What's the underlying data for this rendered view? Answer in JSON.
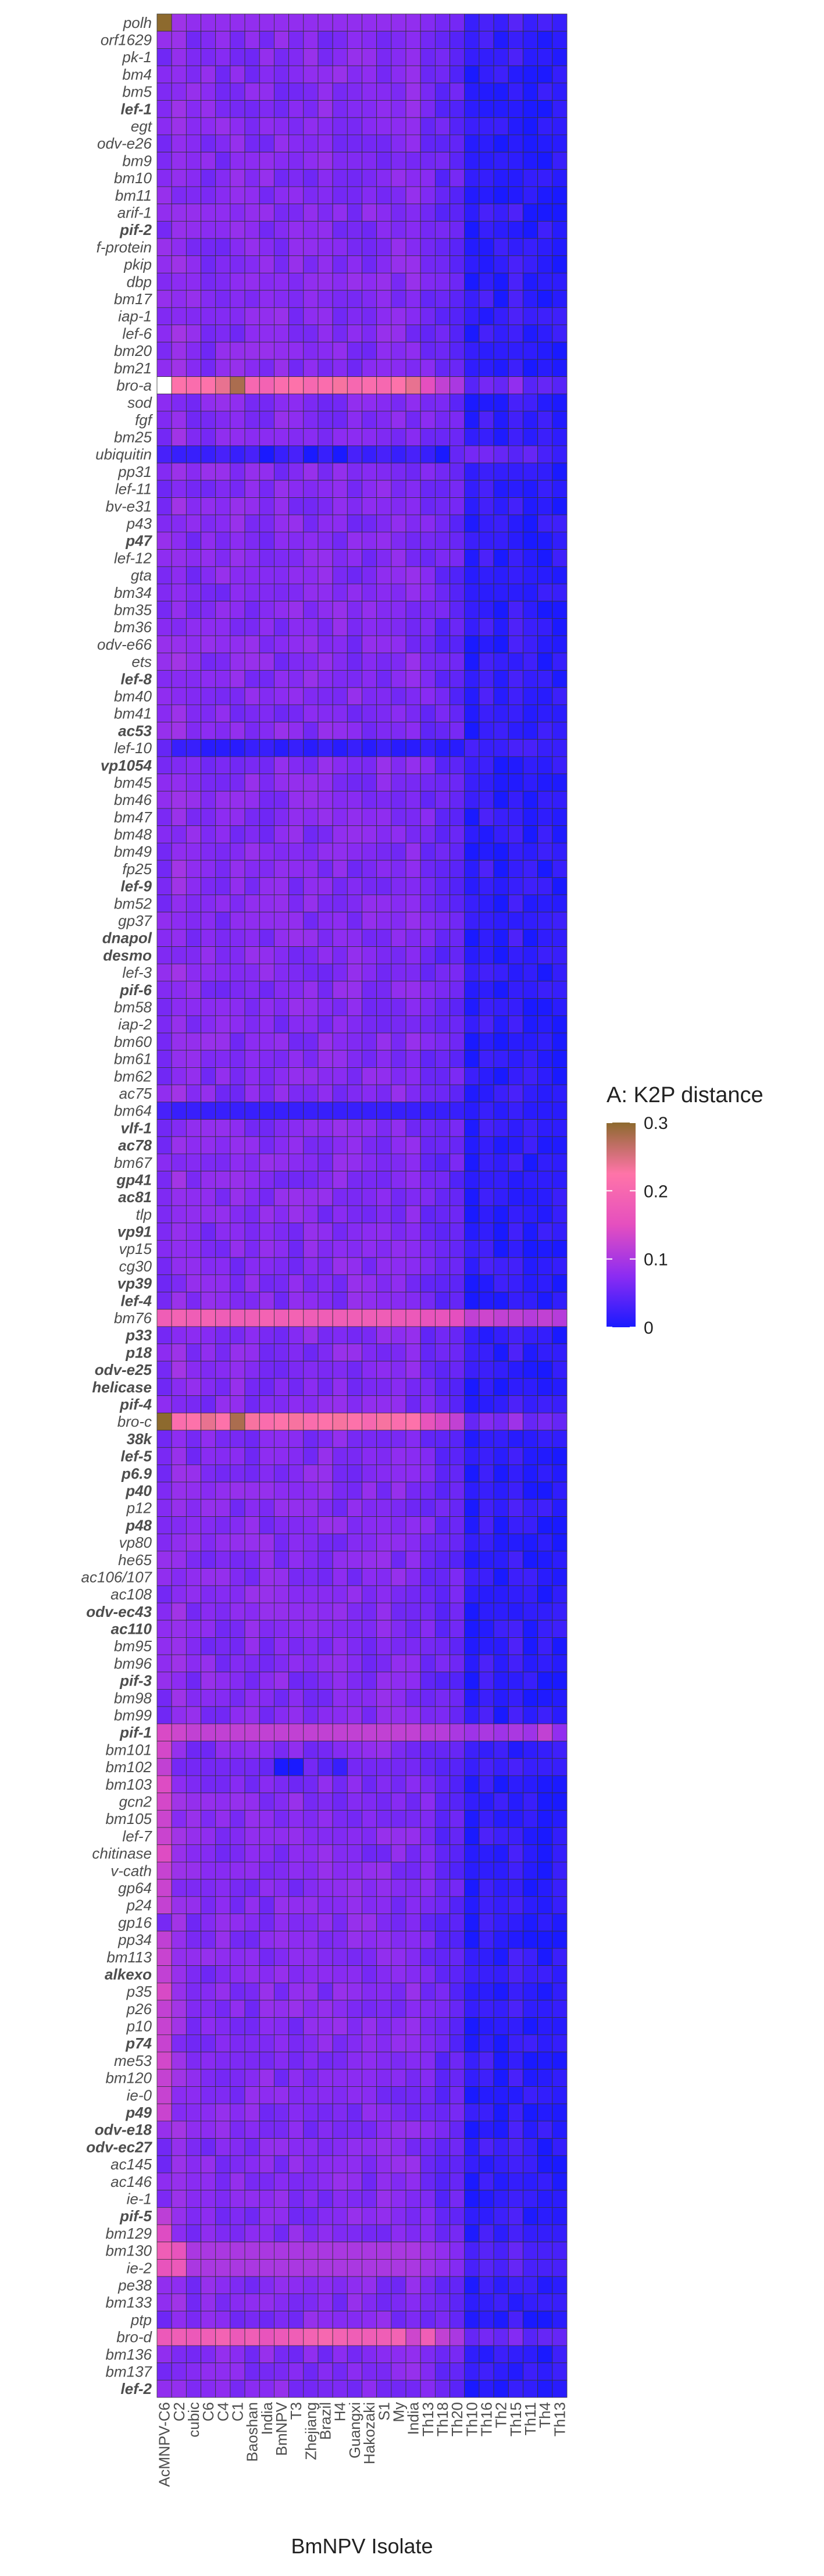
{
  "chart_data": {
    "type": "heatmap",
    "xlabel": "BmNPV Isolate",
    "ylabel": "",
    "x": [
      "AcMNPV-C6",
      "C2",
      "cubic",
      "C6",
      "C4",
      "C1",
      "Baoshan",
      "India",
      "BmNPV",
      "T3",
      "Zhejiang",
      "Brazil",
      "H4",
      "Guangxi",
      "Hakozaki",
      "S1",
      "My",
      "India",
      "Th13",
      "Th18",
      "Th20",
      "Th10",
      "Th16",
      "Th2",
      "Th15",
      "Th11",
      "Th4",
      "Th13"
    ],
    "y": [
      "polh",
      "orf1629",
      "pk-1",
      "bm4",
      "bm5",
      "lef-1",
      "egt",
      "odv-e26",
      "bm9",
      "bm10",
      "bm11",
      "arif-1",
      "pif-2",
      "f-protein",
      "pkip",
      "dbp",
      "bm17",
      "iap-1",
      "lef-6",
      "bm20",
      "bm21",
      "bro-a",
      "sod",
      "fgf",
      "bm25",
      "ubiquitin",
      "pp31",
      "lef-11",
      "bv-e31",
      "p43",
      "p47",
      "lef-12",
      "gta",
      "bm34",
      "bm35",
      "bm36",
      "odv-e66",
      "ets",
      "lef-8",
      "bm40",
      "bm41",
      "ac53",
      "lef-10",
      "vp1054",
      "bm45",
      "bm46",
      "bm47",
      "bm48",
      "bm49",
      "fp25",
      "lef-9",
      "bm52",
      "gp37",
      "dnapol",
      "desmo",
      "lef-3",
      "pif-6",
      "bm58",
      "iap-2",
      "bm60",
      "bm61",
      "bm62",
      "ac75",
      "bm64",
      "vlf-1",
      "ac78",
      "bm67",
      "gp41",
      "ac81",
      "tlp",
      "vp91",
      "vp15",
      "cg30",
      "vp39",
      "lef-4",
      "bm76",
      "p33",
      "p18",
      "odv-e25",
      "helicase",
      "pif-4",
      "bro-c",
      "38k",
      "lef-5",
      "p6.9",
      "p40",
      "p12",
      "p48",
      "vp80",
      "he65",
      "ac106/107",
      "ac108",
      "odv-ec43",
      "ac110",
      "bm95",
      "bm96",
      "pif-3",
      "bm98",
      "bm99",
      "pif-1",
      "bm101",
      "bm102",
      "bm103",
      "gcn2",
      "bm105",
      "lef-7",
      "chitinase",
      "v-cath",
      "gp64",
      "p24",
      "gp16",
      "pp34",
      "bm113",
      "alkexo",
      "p35",
      "p26",
      "p10",
      "p74",
      "me53",
      "bm120",
      "ie-0",
      "p49",
      "odv-e18",
      "odv-ec27",
      "ac145",
      "ac146",
      "ie-1",
      "pif-5",
      "bm129",
      "bm130",
      "ie-2",
      "pe38",
      "bm133",
      "ptp",
      "bro-d",
      "bm136",
      "bm137",
      "lef-2"
    ],
    "bold_rows": [
      "lef-1",
      "pif-2",
      "p47",
      "lef-8",
      "ac53",
      "vp1054",
      "lef-9",
      "dnapol",
      "desmo",
      "pif-6",
      "vlf-1",
      "ac78",
      "gp41",
      "ac81",
      "vp91",
      "vp39",
      "lef-4",
      "p33",
      "p18",
      "odv-e25",
      "helicase",
      "pif-4",
      "38k",
      "lef-5",
      "p6.9",
      "p40",
      "p48",
      "odv-ec43",
      "ac110",
      "pif-3",
      "pif-1",
      "alkexo",
      "p74",
      "p49",
      "odv-e18",
      "odv-ec27",
      "pif-5",
      "lef-2"
    ],
    "legend": {
      "title": "A: K2P distance",
      "min": 0,
      "max": 0.3,
      "ticks": [
        0,
        0.1,
        0.2,
        0.3
      ],
      "tick_labels": [
        "0",
        "0.1",
        "0.2",
        "0.3"
      ],
      "colors": [
        "#1a1aff",
        "#8c2cf2",
        "#e54fbf",
        "#ff74a8",
        "#8d6a2e"
      ],
      "position": "right"
    },
    "cell_border": "#333333",
    "values": {
      "base_profile": [
        0.07,
        0.08,
        0.07,
        0.07,
        0.07,
        0.07,
        0.07,
        0.07,
        0.07,
        0.07,
        0.07,
        0.07,
        0.07,
        0.07,
        0.07,
        0.07,
        0.07,
        0.07,
        0.06,
        0.05,
        0.05,
        0.01,
        0.02,
        0.01,
        0.02,
        0.01,
        0.01,
        0.01
      ],
      "special_rows": {
        "polh": [
          0.3,
          0.09,
          0.08,
          0.08,
          0.08,
          0.08,
          0.08,
          0.08,
          0.08,
          0.08,
          0.08,
          0.08,
          0.08,
          0.08,
          0.08,
          0.08,
          0.08,
          0.08,
          0.07,
          0.06,
          0.06,
          0.02,
          0.03,
          0.02,
          0.04,
          0.02,
          0.03,
          0.02
        ],
        "bro-a": [
          null,
          0.22,
          0.21,
          0.22,
          0.24,
          0.28,
          0.2,
          0.19,
          0.21,
          0.22,
          0.2,
          0.21,
          0.23,
          0.2,
          0.21,
          0.2,
          0.22,
          0.24,
          0.15,
          0.12,
          0.1,
          0.04,
          0.06,
          0.05,
          0.08,
          0.04,
          0.05,
          0.04
        ],
        "ubiquitin": [
          0.03,
          0.02,
          0.02,
          0.02,
          0.03,
          0.02,
          0.03,
          0.0,
          0.02,
          0.03,
          0.0,
          0.02,
          0.0,
          0.03,
          0.02,
          0.03,
          0.02,
          0.03,
          0.02,
          0.0,
          0.05,
          0.06,
          0.06,
          0.05,
          0.04,
          0.05,
          0.03,
          0.02
        ],
        "lef-10": [
          0.05,
          0.02,
          0.02,
          0.01,
          0.01,
          0.01,
          0.02,
          0.02,
          0.01,
          0.02,
          0.01,
          0.02,
          0.01,
          0.02,
          0.01,
          0.02,
          0.01,
          0.01,
          0.02,
          0.01,
          0.01,
          0.03,
          0.02,
          0.02,
          0.03,
          0.03,
          0.02,
          0.02
        ],
        "bm64": [
          0.03,
          0.02,
          0.02,
          0.02,
          0.02,
          0.02,
          0.02,
          0.02,
          0.02,
          0.02,
          0.02,
          0.02,
          0.02,
          0.02,
          0.02,
          0.02,
          0.02,
          0.02,
          0.02,
          0.02,
          0.02,
          0.01,
          0.02,
          0.01,
          0.02,
          0.01,
          0.01,
          0.01
        ],
        "bm76": [
          0.18,
          0.19,
          0.18,
          0.19,
          0.18,
          0.18,
          0.18,
          0.19,
          0.18,
          0.19,
          0.18,
          0.18,
          0.18,
          0.18,
          0.18,
          0.18,
          0.17,
          0.17,
          0.16,
          0.16,
          0.15,
          0.12,
          0.13,
          0.12,
          0.12,
          0.11,
          0.12,
          0.11
        ],
        "bro-c": [
          0.3,
          0.21,
          0.22,
          0.24,
          0.22,
          0.28,
          0.23,
          0.21,
          0.22,
          0.23,
          0.21,
          0.22,
          0.23,
          0.22,
          0.2,
          0.23,
          0.21,
          0.22,
          0.16,
          0.14,
          0.12,
          0.05,
          0.07,
          0.06,
          0.09,
          0.05,
          0.06,
          0.05
        ],
        "pif-1": [
          0.14,
          0.13,
          0.12,
          0.12,
          0.12,
          0.12,
          0.12,
          0.12,
          0.12,
          0.12,
          0.12,
          0.12,
          0.12,
          0.12,
          0.12,
          0.12,
          0.12,
          0.12,
          0.11,
          0.11,
          0.1,
          0.09,
          0.1,
          0.09,
          0.1,
          0.09,
          0.12,
          0.08
        ],
        "bm102": [
          0.12,
          0.06,
          0.06,
          0.06,
          0.06,
          0.06,
          0.06,
          0.05,
          0.0,
          0.0,
          0.06,
          0.04,
          0.02,
          0.06,
          0.06,
          0.06,
          0.06,
          0.06,
          0.05,
          0.04,
          0.04,
          0.02,
          0.03,
          0.02,
          0.03,
          0.02,
          0.02,
          0.02
        ],
        "bm130": [
          0.18,
          0.16,
          0.1,
          0.1,
          0.1,
          0.1,
          0.1,
          0.1,
          0.1,
          0.1,
          0.1,
          0.1,
          0.1,
          0.1,
          0.1,
          0.1,
          0.1,
          0.1,
          0.09,
          0.08,
          0.07,
          0.03,
          0.04,
          0.03,
          0.05,
          0.03,
          0.03,
          0.03
        ],
        "ie-2": [
          0.16,
          0.17,
          0.1,
          0.1,
          0.1,
          0.1,
          0.1,
          0.1,
          0.1,
          0.1,
          0.1,
          0.1,
          0.1,
          0.1,
          0.1,
          0.1,
          0.1,
          0.1,
          0.09,
          0.08,
          0.07,
          0.03,
          0.04,
          0.03,
          0.05,
          0.03,
          0.03,
          0.03
        ],
        "bro-d": [
          0.17,
          0.18,
          0.17,
          0.18,
          0.19,
          0.17,
          0.18,
          0.16,
          0.17,
          0.18,
          0.19,
          0.2,
          0.19,
          0.18,
          0.18,
          0.18,
          0.19,
          0.13,
          0.18,
          0.12,
          0.1,
          0.05,
          0.06,
          0.05,
          0.07,
          0.04,
          0.05,
          0.05
        ]
      },
      "note_rows_acmnpv_high": [
        "bm101",
        "bm103",
        "gcn2",
        "bm105",
        "lef-7",
        "chitinase",
        "v-cath",
        "gp64",
        "p24",
        "pp34",
        "bm113",
        "alkexo",
        "p35",
        "p26",
        "p10",
        "p74",
        "me53",
        "bm120",
        "pif-5",
        "bm129",
        "ie-0",
        "p49"
      ]
    }
  }
}
